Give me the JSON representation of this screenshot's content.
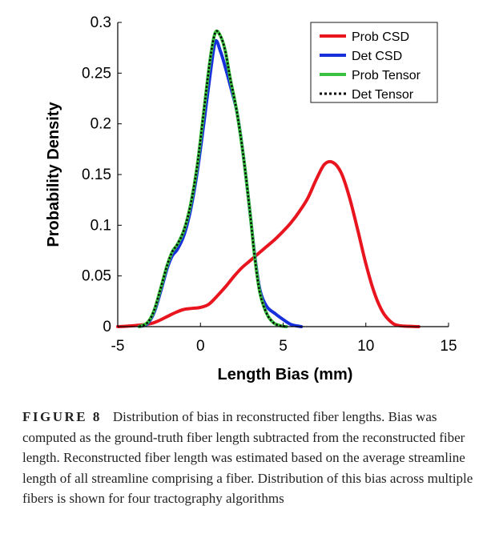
{
  "chart_data": {
    "type": "line",
    "xlabel": "Length Bias (mm)",
    "ylabel": "Probability Density",
    "xlim": [
      -5,
      15
    ],
    "ylim": [
      0,
      0.3
    ],
    "xticks": [
      "-5",
      "0",
      "5",
      "10",
      "15"
    ],
    "yticks": [
      "0",
      "0.05",
      "0.1",
      "0.15",
      "0.2",
      "0.25",
      "0.3"
    ],
    "grid": false,
    "legend_position": "top-right",
    "series": [
      {
        "name": "Prob CSD",
        "color": "#e8141e",
        "style": "solid",
        "x": [
          -5,
          -4,
          -3,
          -2.5,
          -2,
          -1.5,
          -1,
          -0.5,
          0,
          0.5,
          1,
          1.5,
          2,
          2.5,
          3,
          3.5,
          4,
          4.5,
          5,
          5.5,
          6,
          6.5,
          7,
          7.5,
          8,
          8.5,
          9,
          9.5,
          10,
          10.5,
          11,
          11.5,
          12,
          13.2
        ],
        "y": [
          0,
          0.001,
          0.003,
          0.006,
          0.01,
          0.014,
          0.017,
          0.018,
          0.019,
          0.022,
          0.03,
          0.039,
          0.049,
          0.058,
          0.065,
          0.072,
          0.079,
          0.086,
          0.094,
          0.103,
          0.114,
          0.127,
          0.145,
          0.16,
          0.162,
          0.152,
          0.128,
          0.096,
          0.062,
          0.034,
          0.015,
          0.005,
          0.001,
          0
        ]
      },
      {
        "name": "Det CSD",
        "color": "#1730dc",
        "style": "solid",
        "x": [
          -3.7,
          -3.2,
          -2.8,
          -2.4,
          -2,
          -1.7,
          -1.4,
          -1,
          -0.6,
          -0.2,
          0.2,
          0.6,
          0.9,
          1.2,
          1.5,
          1.8,
          2.2,
          2.6,
          3,
          3.3,
          3.6,
          4,
          4.5,
          5,
          5.5,
          6.1
        ],
        "y": [
          0,
          0.003,
          0.014,
          0.035,
          0.058,
          0.07,
          0.076,
          0.09,
          0.115,
          0.152,
          0.2,
          0.25,
          0.281,
          0.272,
          0.256,
          0.238,
          0.212,
          0.168,
          0.112,
          0.068,
          0.036,
          0.02,
          0.013,
          0.007,
          0.002,
          0
        ]
      },
      {
        "name": "Prob Tensor",
        "color": "#3bc140",
        "style": "solid",
        "x": [
          -3.7,
          -3.2,
          -2.8,
          -2.4,
          -2,
          -1.7,
          -1.4,
          -1,
          -0.6,
          -0.2,
          0.2,
          0.6,
          0.9,
          1.2,
          1.5,
          1.8,
          2.2,
          2.6,
          3,
          3.3,
          3.6,
          4,
          4.4,
          4.8,
          5.2
        ],
        "y": [
          0,
          0.004,
          0.016,
          0.038,
          0.061,
          0.074,
          0.081,
          0.095,
          0.12,
          0.158,
          0.212,
          0.265,
          0.29,
          0.287,
          0.272,
          0.245,
          0.212,
          0.168,
          0.112,
          0.066,
          0.033,
          0.013,
          0.004,
          0.001,
          0
        ]
      },
      {
        "name": "Det Tensor",
        "color": "#000000",
        "style": "dotted",
        "x": [
          -3.7,
          -3.2,
          -2.8,
          -2.4,
          -2,
          -1.7,
          -1.4,
          -1,
          -0.6,
          -0.2,
          0.2,
          0.6,
          0.9,
          1.2,
          1.5,
          1.8,
          2.2,
          2.6,
          3,
          3.3,
          3.6,
          4,
          4.4,
          4.8,
          5.2
        ],
        "y": [
          0,
          0.004,
          0.016,
          0.038,
          0.061,
          0.074,
          0.081,
          0.095,
          0.12,
          0.158,
          0.212,
          0.265,
          0.29,
          0.287,
          0.272,
          0.245,
          0.212,
          0.168,
          0.112,
          0.066,
          0.033,
          0.013,
          0.004,
          0.001,
          0
        ]
      }
    ]
  },
  "caption": {
    "label": "FIGURE 8",
    "text": "Distribution of bias in reconstructed fiber lengths. Bias was computed as the ground-truth fiber length subtracted from the reconstructed fiber length. Reconstructed fiber length was estimated based on the average streamline length of all streamline comprising a fiber. Distribution of this bias across multiple fibers is shown for four tractography algorithms"
  }
}
